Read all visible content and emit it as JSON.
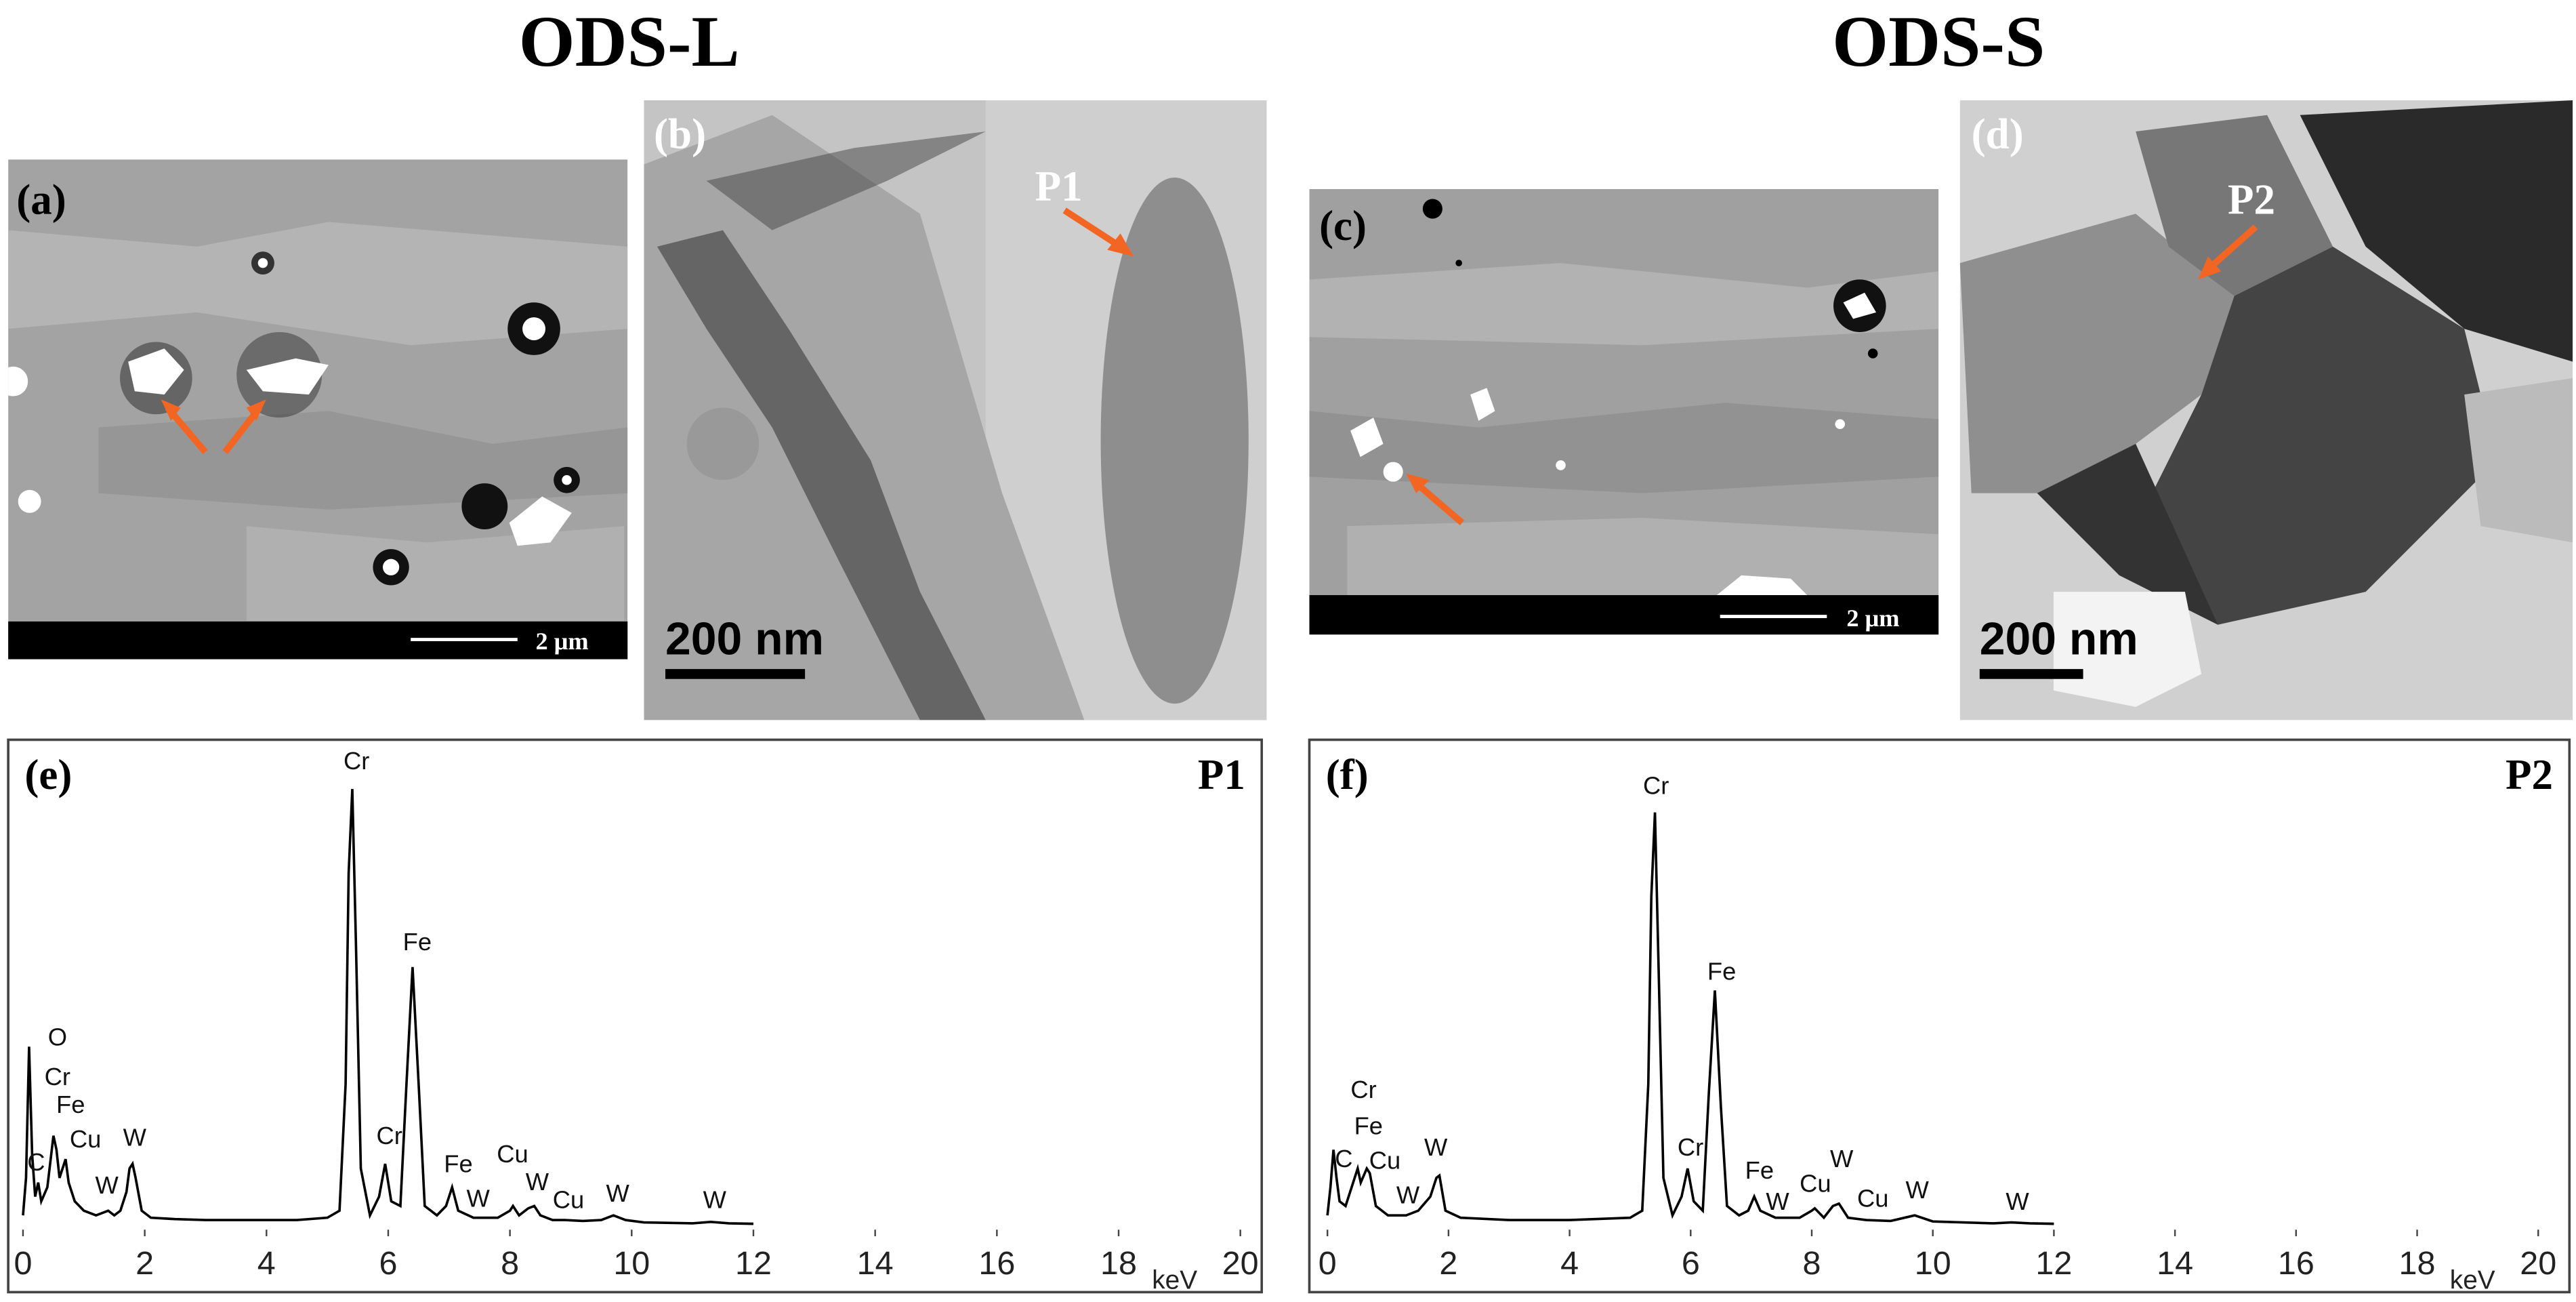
{
  "figure": {
    "headings": [
      "ODS-L",
      "ODS-S"
    ],
    "panels": [
      {
        "label": "(a)",
        "scale": "2 μm"
      },
      {
        "label": "(b)",
        "scale": "200 nm",
        "marker": "P1"
      },
      {
        "label": "(c)",
        "scale": "2 μm"
      },
      {
        "label": "(d)",
        "scale": "200 nm",
        "marker": "P2"
      }
    ]
  },
  "chart_data": [
    {
      "type": "line",
      "panel_label": "(e)",
      "point_label": "P1",
      "xlabel": "keV",
      "color": "#000000",
      "xlim": [
        0,
        20
      ],
      "xticks": [
        0,
        2,
        4,
        6,
        8,
        10,
        12,
        14,
        16,
        18,
        20
      ],
      "ylim": [
        0,
        100
      ],
      "x": [
        0,
        0.05,
        0.1,
        0.15,
        0.2,
        0.25,
        0.3,
        0.4,
        0.5,
        0.55,
        0.6,
        0.7,
        0.75,
        0.85,
        1.0,
        1.2,
        1.4,
        1.5,
        1.6,
        1.7,
        1.75,
        1.8,
        1.85,
        1.95,
        2.1,
        2.5,
        3,
        3.5,
        4,
        4.5,
        5,
        5.2,
        5.3,
        5.35,
        5.41,
        5.47,
        5.55,
        5.7,
        5.85,
        5.95,
        6.05,
        6.2,
        6.3,
        6.4,
        6.5,
        6.6,
        6.8,
        6.95,
        7.05,
        7.15,
        7.4,
        7.8,
        8.0,
        8.05,
        8.15,
        8.3,
        8.4,
        8.5,
        8.7,
        8.9,
        9.2,
        9.5,
        9.7,
        9.9,
        10.2,
        11,
        11.3,
        11.6,
        12
      ],
      "values": [
        2,
        10,
        38,
        15,
        6,
        9,
        5,
        8,
        19,
        16,
        10,
        14,
        9,
        5,
        3,
        2,
        3,
        2,
        3,
        7,
        12,
        13,
        10,
        3,
        1.5,
        1.2,
        1,
        1,
        1,
        1,
        1.5,
        3,
        30,
        75,
        93,
        60,
        12,
        2,
        6,
        13,
        5,
        4,
        30,
        55,
        30,
        4,
        2,
        4,
        8,
        3,
        1.5,
        1.5,
        3,
        4,
        2,
        3.5,
        4,
        2,
        1,
        1,
        0.8,
        1,
        2,
        1,
        0.5,
        0.3,
        0.6,
        0.3,
        0.2
      ],
      "annotations": [
        "O",
        "Cr",
        "Fe",
        "Cu",
        "W",
        "C",
        "W",
        "Cr",
        "Cr",
        "Fe",
        "Fe",
        "W",
        "Cu",
        "W",
        "Cu",
        "W",
        "W"
      ]
    },
    {
      "type": "line",
      "panel_label": "(f)",
      "point_label": "P2",
      "xlabel": "keV",
      "color": "#000000",
      "xlim": [
        0,
        20
      ],
      "xticks": [
        0,
        2,
        4,
        6,
        8,
        10,
        12,
        14,
        16,
        18,
        20
      ],
      "ylim": [
        0,
        100
      ],
      "x": [
        0,
        0.05,
        0.1,
        0.15,
        0.2,
        0.3,
        0.4,
        0.5,
        0.55,
        0.65,
        0.7,
        0.8,
        1.0,
        1.3,
        1.5,
        1.7,
        1.8,
        1.85,
        1.95,
        2.2,
        3,
        4,
        5,
        5.2,
        5.3,
        5.35,
        5.41,
        5.47,
        5.55,
        5.7,
        5.85,
        5.95,
        6.05,
        6.2,
        6.3,
        6.4,
        6.5,
        6.6,
        6.8,
        6.95,
        7.05,
        7.15,
        7.4,
        7.8,
        8.0,
        8.05,
        8.2,
        8.35,
        8.45,
        8.6,
        8.9,
        9.3,
        9.7,
        10,
        11,
        11.3,
        11.6,
        12
      ],
      "values": [
        2,
        8,
        16,
        10,
        5,
        4,
        8,
        12,
        9,
        12,
        11,
        4,
        2,
        2,
        3,
        6,
        10,
        10.5,
        3,
        1.5,
        1,
        1,
        1.5,
        3,
        30,
        70,
        88,
        55,
        10,
        2,
        6,
        12,
        5,
        3,
        28,
        50,
        25,
        4,
        2,
        3,
        6,
        3,
        1.5,
        1.5,
        3,
        3.5,
        1.5,
        4,
        4.5,
        1.5,
        1,
        0.8,
        2,
        0.7,
        0.3,
        0.5,
        0.3,
        0.2
      ],
      "annotations": [
        "Cr",
        "Fe",
        "Cr",
        "Fe",
        "C",
        "Cu",
        "W",
        "W",
        "Cr",
        "Fe",
        "W",
        "Cu",
        "W",
        "Cu",
        "W",
        "W"
      ]
    }
  ]
}
